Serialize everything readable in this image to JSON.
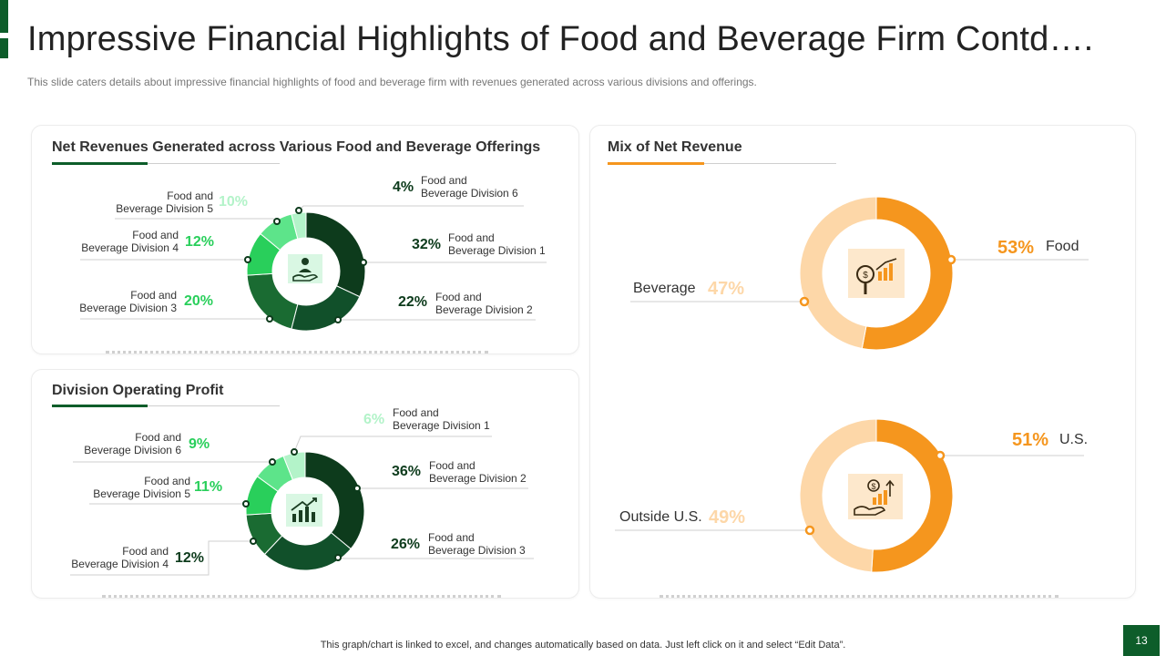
{
  "page": {
    "title": "Impressive Financial Highlights of Food and Beverage Firm Contd….",
    "subtitle": "This slide caters details about impressive  financial highlights of food and beverage  firm with revenues  generated across various divisions and offerings.",
    "footer": "This graph/chart is linked to excel,  and changes automatically based on data. Just left click on it and select “Edit Data”.",
    "page_number": "13"
  },
  "icons": {
    "net_revenue_center": "hand-person-icon",
    "operating_profit_center": "growth-chart-icon",
    "mix_food_center": "magnifier-coin-chart-icon",
    "mix_geo_center": "hand-money-bars-icon"
  },
  "colors": {
    "dark_green": "#0d3b1c",
    "green2": "#11502a",
    "green3": "#1a6b32",
    "bright_green": "#29cf5b",
    "light_green": "#5de48a",
    "pale_green": "#b3f3c9",
    "orange": "#f5961e",
    "light_orange": "#fdd7a8"
  },
  "chart_data": [
    {
      "type": "pie",
      "title": "Net Revenues Generated across  Various Food and Beverage Offerings",
      "categories": [
        "Food and Beverage Division 1",
        "Food and Beverage Division 2",
        "Food and Beverage Division 3",
        "Food and Beverage Division 4",
        "Food and Beverage Division 5",
        "Food and Beverage Division 6"
      ],
      "values": [
        32,
        22,
        20,
        12,
        10,
        4
      ],
      "value_labels": [
        "32%",
        "22%",
        "20%",
        "12%",
        "10%",
        "4%"
      ],
      "label_lines": [
        [
          "Food and",
          "Beverage Division 1"
        ],
        [
          "Food and",
          "Beverage Division 2"
        ],
        [
          "Food and",
          "Beverage Division 3"
        ],
        [
          "Food and",
          "Beverage Division 4"
        ],
        [
          "Food and",
          "Beverage Division 5"
        ],
        [
          "Food and",
          "Beverage Division 6"
        ]
      ],
      "colors": [
        "#0d3b1c",
        "#11502a",
        "#1a6b32",
        "#29cf5b",
        "#5de48a",
        "#b3f3c9"
      ],
      "donut": true
    },
    {
      "type": "pie",
      "title": "Division Operating Profit",
      "categories": [
        "Food and Beverage Division 1",
        "Food and Beverage Division 2",
        "Food and Beverage Division 3",
        "Food and Beverage Division 4",
        "Food and Beverage Division 5",
        "Food and Beverage Division 6"
      ],
      "values": [
        6,
        36,
        26,
        12,
        11,
        9
      ],
      "value_labels": [
        "6%",
        "36%",
        "26%",
        "12%",
        "11%",
        "9%"
      ],
      "label_lines": [
        [
          "Food and",
          "Beverage Division 1"
        ],
        [
          "Food and",
          "Beverage Division 2"
        ],
        [
          "Food and",
          "Beverage Division 3"
        ],
        [
          "Food and",
          "Beverage Division 4"
        ],
        [
          "Food and",
          "Beverage Division 5"
        ],
        [
          "Food and",
          "Beverage Division 6"
        ]
      ],
      "order": [
        1,
        2,
        3,
        4,
        5,
        0
      ],
      "colors": [
        "#b3f3c9",
        "#0d3b1c",
        "#11502a",
        "#1a6b32",
        "#29cf5b",
        "#5de48a"
      ],
      "donut": true
    },
    {
      "type": "pie",
      "title": "Mix of Net Revenue",
      "categories": [
        "Food",
        "Beverage"
      ],
      "values": [
        53,
        47
      ],
      "value_labels": [
        "53%",
        "47%"
      ],
      "colors": [
        "#f5961e",
        "#fdd7a8"
      ],
      "donut": true
    },
    {
      "type": "pie",
      "title": "",
      "categories": [
        "U.S.",
        "Outside U.S."
      ],
      "values": [
        51,
        49
      ],
      "value_labels": [
        "51%",
        "49%"
      ],
      "colors": [
        "#f5961e",
        "#fdd7a8"
      ],
      "donut": true
    }
  ]
}
